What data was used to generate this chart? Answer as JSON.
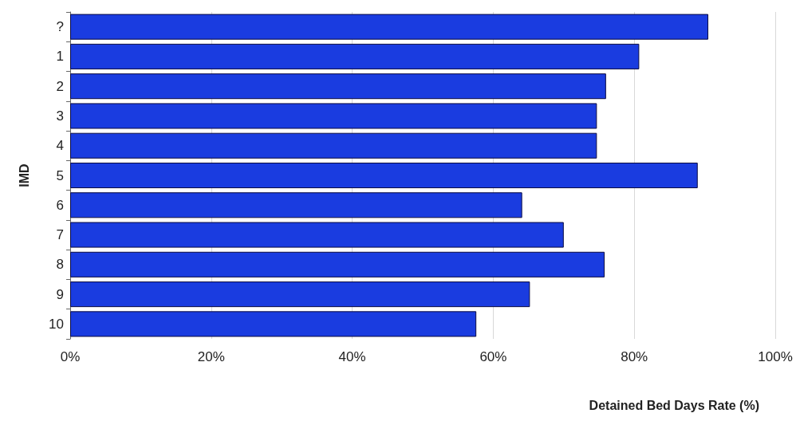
{
  "chart_data": {
    "type": "bar",
    "orientation": "horizontal",
    "categories": [
      "?",
      "1",
      "2",
      "3",
      "4",
      "5",
      "6",
      "7",
      "8",
      "9",
      "10"
    ],
    "values": [
      90.5,
      80.7,
      76.0,
      74.7,
      74.7,
      89.0,
      64.1,
      70.0,
      75.8,
      65.2,
      57.6
    ],
    "color": "#1a3ce0",
    "xlabel": "Detained Bed Days Rate (%)",
    "ylabel": "IMD",
    "xlim": [
      0,
      100
    ],
    "xticks": [
      {
        "value": 0,
        "label": "0%"
      },
      {
        "value": 20,
        "label": "20%"
      },
      {
        "value": 40,
        "label": "40%"
      },
      {
        "value": 60,
        "label": "60%"
      },
      {
        "value": 80,
        "label": "80%"
      },
      {
        "value": 100,
        "label": "100%"
      }
    ],
    "grid": "x"
  }
}
